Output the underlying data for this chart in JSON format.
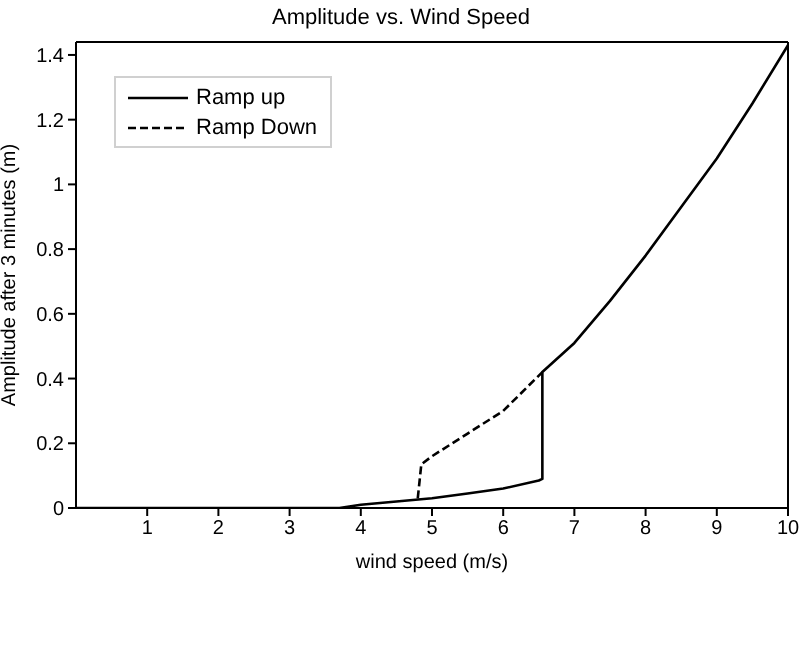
{
  "chart_data": {
    "type": "line",
    "title": "Amplitude vs. Wind Speed",
    "xlabel": "wind speed (m/s)",
    "ylabel": "Amplitude after 3 minutes (m)",
    "xlim": [
      0,
      10
    ],
    "xticks": [
      1,
      2,
      3,
      4,
      5,
      6,
      7,
      8,
      9,
      10
    ],
    "ylim": [
      0,
      1.44
    ],
    "yticks": [
      0,
      0.2,
      0.4,
      0.6,
      0.8,
      1,
      1.2,
      1.4
    ],
    "grid": false,
    "legend": "top left",
    "marker": "none",
    "series": [
      {
        "name": "Ramp up",
        "color": "#000000",
        "line_style": "solid",
        "x": [
          0,
          3.7,
          4,
          4.5,
          5,
          5.5,
          6,
          6.5,
          6.55,
          6.55,
          7,
          7.5,
          8,
          8.5,
          9,
          9.5,
          10
        ],
        "values": [
          0,
          0,
          0.01,
          0.02,
          0.03,
          0.045,
          0.06,
          0.085,
          0.09,
          0.42,
          0.51,
          0.64,
          0.78,
          0.93,
          1.08,
          1.25,
          1.43
        ]
      },
      {
        "name": "Ramp Down",
        "color": "#000000",
        "line_style": "dashed",
        "x": [
          4.8,
          4.85,
          5,
          5.5,
          6,
          6.55
        ],
        "values": [
          0.03,
          0.135,
          0.16,
          0.23,
          0.3,
          0.42
        ]
      }
    ]
  }
}
